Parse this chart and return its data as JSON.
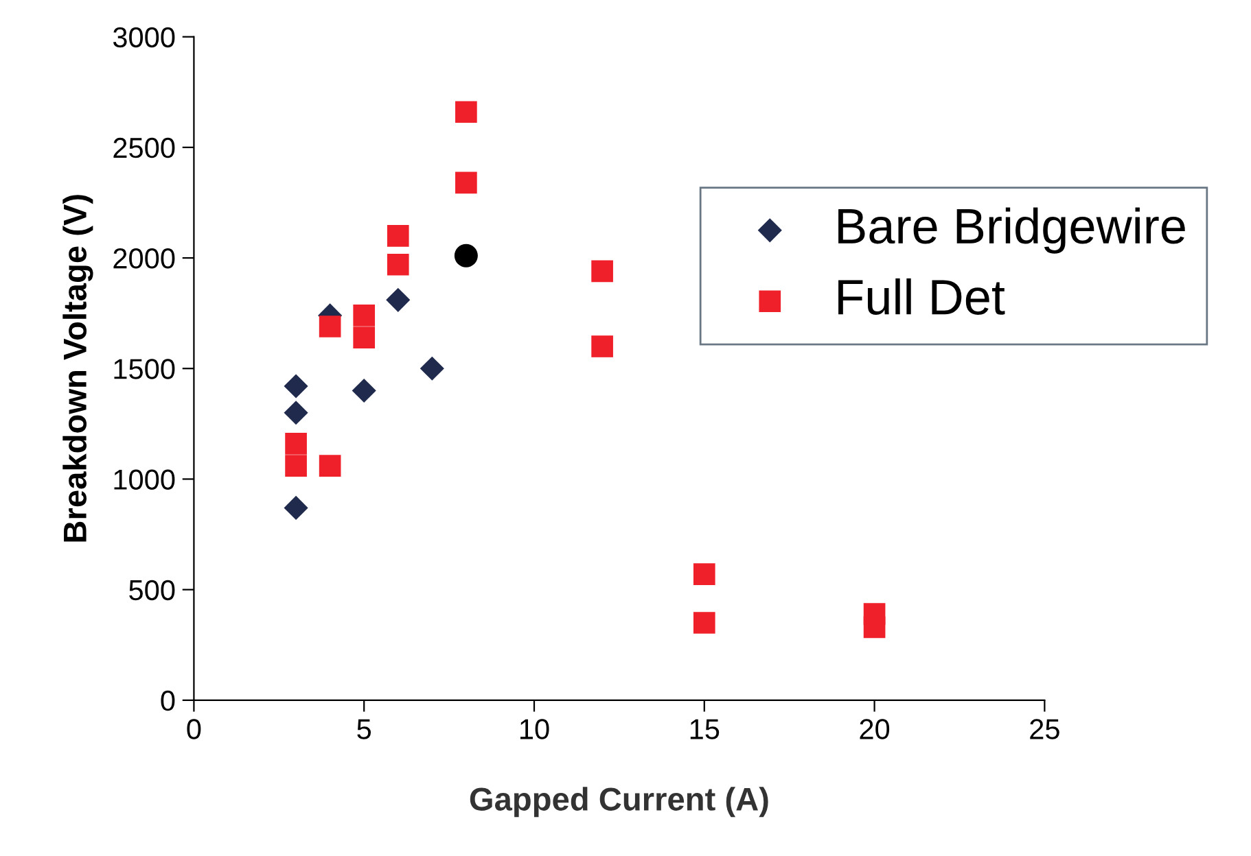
{
  "chart_data": {
    "type": "scatter",
    "xlabel": "Gapped Current (A)",
    "ylabel": "Breakdown Voltage (V)",
    "xlim": [
      0,
      25
    ],
    "xticks": [
      0,
      5,
      10,
      15,
      20,
      25
    ],
    "ylim": [
      0,
      3000
    ],
    "yticks": [
      0,
      500,
      1000,
      1500,
      2000,
      2500,
      3000
    ],
    "grid": false,
    "legend": "top right",
    "series": [
      {
        "name": "Bare Bridgewire",
        "color": "#1f2a4d",
        "marker": "diamond",
        "x": [
          3,
          3,
          3,
          4,
          5,
          6,
          7
        ],
        "values": [
          1420,
          1300,
          870,
          1740,
          1400,
          1810,
          1500
        ]
      },
      {
        "name": "Full Det",
        "color": "#f0202a",
        "marker": "square",
        "x": [
          3,
          3,
          4,
          4,
          5,
          5,
          6,
          6,
          8,
          8,
          12,
          12,
          15,
          15,
          20,
          20
        ],
        "values": [
          1060,
          1160,
          1690,
          1060,
          1740,
          1640,
          2100,
          1970,
          2660,
          2340,
          1940,
          1600,
          570,
          350,
          390,
          330
        ]
      },
      {
        "color": "#000000",
        "marker": "circle",
        "x": [
          8
        ],
        "values": [
          2010
        ]
      }
    ]
  }
}
